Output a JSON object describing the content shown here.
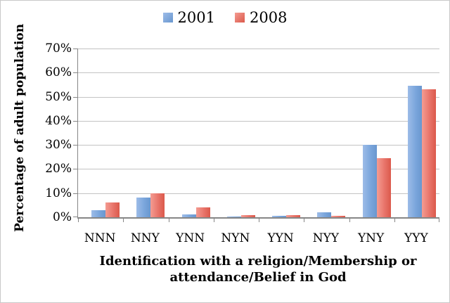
{
  "chart_data": {
    "type": "bar",
    "title": "",
    "categories": [
      "NNN",
      "NNY",
      "YNN",
      "NYN",
      "YYN",
      "NYY",
      "YNY",
      "YYY"
    ],
    "series": [
      {
        "name": "2001",
        "color": "#7BA6DC",
        "color_light": "#9DBCE8",
        "color_dark": "#6997CF",
        "values": [
          3.0,
          8.2,
          1.2,
          0.4,
          0.6,
          2.0,
          30.0,
          54.5
        ]
      },
      {
        "name": "2008",
        "color": "#E8746A",
        "color_light": "#F49C92",
        "color_dark": "#DB594B",
        "values": [
          6.2,
          9.8,
          4.0,
          0.8,
          1.0,
          0.5,
          24.6,
          53.0
        ]
      }
    ],
    "xlabel": "Identification with a religion/Membership or attendance/Belief in God",
    "ylabel": "Percentage of adult population",
    "ylim": [
      0,
      70
    ],
    "ytick_step": 10,
    "ytick_labels": [
      "0%",
      "10%",
      "20%",
      "30%",
      "40%",
      "50%",
      "60%",
      "70%"
    ],
    "grid": true,
    "legend_position": "top-center"
  },
  "frame": {
    "gridline_color": "#c3c3c3",
    "axis_color": "#868686",
    "background": "#ffffff"
  }
}
